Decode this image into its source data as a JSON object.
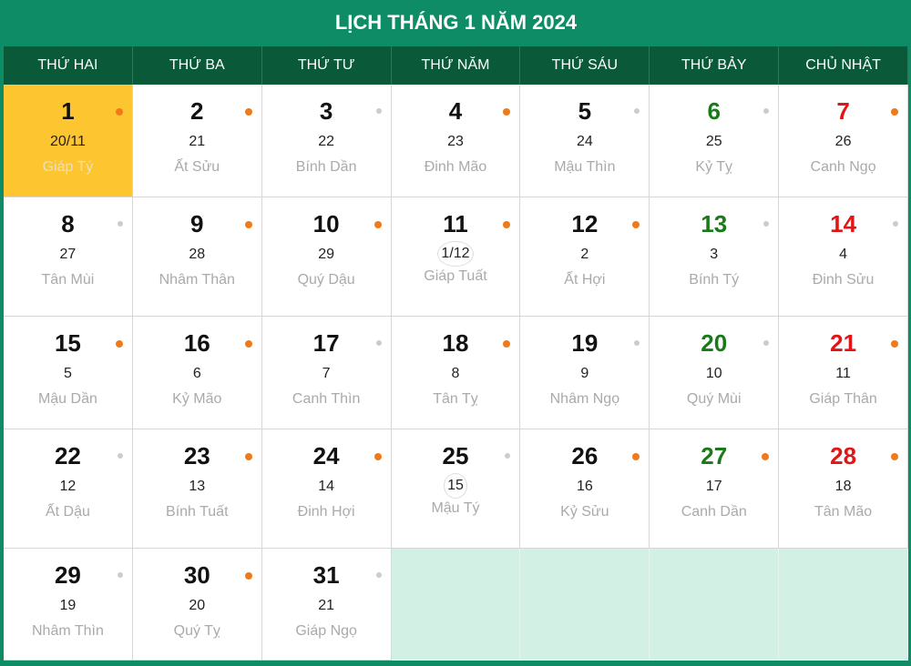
{
  "title": "LỊCH THÁNG 1 NĂM 2024",
  "colors": {
    "frame": "#0e8c66",
    "header": "#0a5a3a",
    "today": "#fdc52f",
    "saturday": "#1a7a1a",
    "sunday": "#e31414",
    "dot_good": "#f07a1a",
    "dot_neutral": "#cccccc",
    "empty": "#d3f0e5"
  },
  "weekdays": [
    "THỨ HAI",
    "THỨ BA",
    "THỨ TƯ",
    "THỨ NĂM",
    "THỨ SÁU",
    "THỨ BẢY",
    "CHỦ NHẬT"
  ],
  "days": [
    {
      "solar": "1",
      "lunar": "20/11",
      "can_chi": "Giáp Tý",
      "dot": "orange",
      "today": true
    },
    {
      "solar": "2",
      "lunar": "21",
      "can_chi": "Ất Sửu",
      "dot": "orange"
    },
    {
      "solar": "3",
      "lunar": "22",
      "can_chi": "Bính Dần",
      "dot": "gray"
    },
    {
      "solar": "4",
      "lunar": "23",
      "can_chi": "Đinh Mão",
      "dot": "orange"
    },
    {
      "solar": "5",
      "lunar": "24",
      "can_chi": "Mậu Thìn",
      "dot": "gray"
    },
    {
      "solar": "6",
      "lunar": "25",
      "can_chi": "Kỷ Tỵ",
      "dot": "gray"
    },
    {
      "solar": "7",
      "lunar": "26",
      "can_chi": "Canh Ngọ",
      "dot": "orange"
    },
    {
      "solar": "8",
      "lunar": "27",
      "can_chi": "Tân Mùi",
      "dot": "gray"
    },
    {
      "solar": "9",
      "lunar": "28",
      "can_chi": "Nhâm Thân",
      "dot": "orange"
    },
    {
      "solar": "10",
      "lunar": "29",
      "can_chi": "Quý Dậu",
      "dot": "orange"
    },
    {
      "solar": "11",
      "lunar": "1/12",
      "can_chi": "Giáp Tuất",
      "dot": "orange",
      "ring": true
    },
    {
      "solar": "12",
      "lunar": "2",
      "can_chi": "Ất Hợi",
      "dot": "orange"
    },
    {
      "solar": "13",
      "lunar": "3",
      "can_chi": "Bính Tý",
      "dot": "gray"
    },
    {
      "solar": "14",
      "lunar": "4",
      "can_chi": "Đinh Sửu",
      "dot": "gray"
    },
    {
      "solar": "15",
      "lunar": "5",
      "can_chi": "Mậu Dần",
      "dot": "orange"
    },
    {
      "solar": "16",
      "lunar": "6",
      "can_chi": "Kỷ Mão",
      "dot": "orange"
    },
    {
      "solar": "17",
      "lunar": "7",
      "can_chi": "Canh Thìn",
      "dot": "gray"
    },
    {
      "solar": "18",
      "lunar": "8",
      "can_chi": "Tân Tỵ",
      "dot": "orange"
    },
    {
      "solar": "19",
      "lunar": "9",
      "can_chi": "Nhâm Ngọ",
      "dot": "gray"
    },
    {
      "solar": "20",
      "lunar": "10",
      "can_chi": "Quý Mùi",
      "dot": "gray"
    },
    {
      "solar": "21",
      "lunar": "11",
      "can_chi": "Giáp Thân",
      "dot": "orange"
    },
    {
      "solar": "22",
      "lunar": "12",
      "can_chi": "Ất Dậu",
      "dot": "gray"
    },
    {
      "solar": "23",
      "lunar": "13",
      "can_chi": "Bính Tuất",
      "dot": "orange"
    },
    {
      "solar": "24",
      "lunar": "14",
      "can_chi": "Đinh Hợi",
      "dot": "orange"
    },
    {
      "solar": "25",
      "lunar": "15",
      "can_chi": "Mậu Tý",
      "dot": "gray",
      "ring": true
    },
    {
      "solar": "26",
      "lunar": "16",
      "can_chi": "Kỷ Sửu",
      "dot": "orange"
    },
    {
      "solar": "27",
      "lunar": "17",
      "can_chi": "Canh Dần",
      "dot": "orange"
    },
    {
      "solar": "28",
      "lunar": "18",
      "can_chi": "Tân Mão",
      "dot": "orange"
    },
    {
      "solar": "29",
      "lunar": "19",
      "can_chi": "Nhâm Thìn",
      "dot": "gray"
    },
    {
      "solar": "30",
      "lunar": "20",
      "can_chi": "Quý Tỵ",
      "dot": "orange"
    },
    {
      "solar": "31",
      "lunar": "21",
      "can_chi": "Giáp Ngọ",
      "dot": "gray"
    }
  ]
}
